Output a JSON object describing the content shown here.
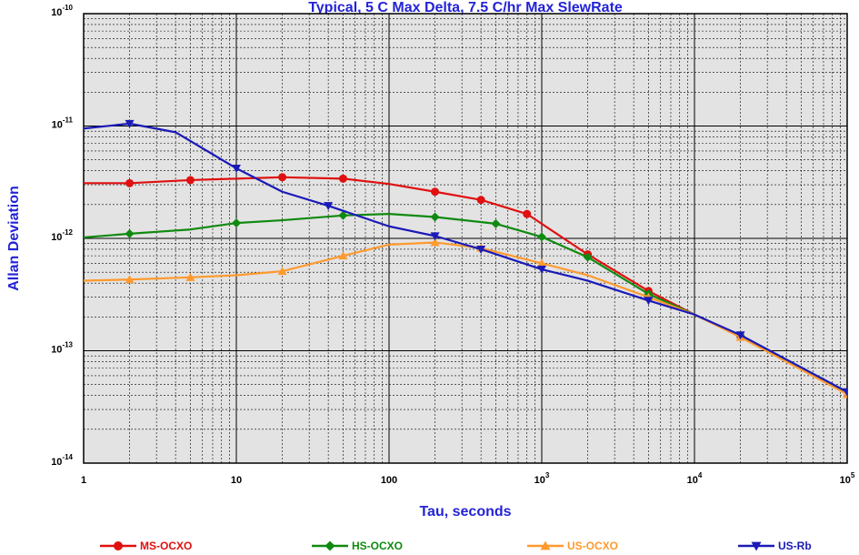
{
  "chart_data": {
    "type": "line",
    "title": "Typical, 5 C Max Delta, 7.5 C/hr Max SlewRate",
    "xlabel": "Tau, seconds",
    "ylabel": "Allan Deviation",
    "x_scale": "log",
    "y_scale": "log",
    "xlim": [
      1,
      100000
    ],
    "ylim": [
      1e-14,
      1e-10
    ],
    "grid": true,
    "legend_position": "bottom",
    "x_ticks": [
      {
        "base": "1",
        "exp": ""
      },
      {
        "base": "10",
        "exp": ""
      },
      {
        "base": "100",
        "exp": ""
      },
      {
        "base": "10",
        "exp": "3"
      },
      {
        "base": "10",
        "exp": "4"
      },
      {
        "base": "10",
        "exp": "5"
      }
    ],
    "y_ticks": [
      {
        "base": "10",
        "exp": "-14"
      },
      {
        "base": "10",
        "exp": "-13"
      },
      {
        "base": "10",
        "exp": "-12"
      },
      {
        "base": "10",
        "exp": "-11"
      },
      {
        "base": "10",
        "exp": "-10"
      }
    ],
    "series": [
      {
        "name": "MS-OCXO",
        "color": "#e01010",
        "marker": "circle",
        "x": [
          1,
          2,
          5,
          10,
          20,
          50,
          100,
          200,
          400,
          800,
          2000,
          5000,
          10000,
          20000,
          100000
        ],
        "y": [
          3.1e-12,
          3.1e-12,
          3.3e-12,
          3.4e-12,
          3.5e-12,
          3.4e-12,
          3.05e-12,
          2.6e-12,
          2.2e-12,
          1.65e-12,
          7.2e-13,
          3.4e-13,
          2.1e-13,
          1.35e-13,
          4.2e-14
        ],
        "markers_at": [
          2,
          5,
          20,
          50,
          200,
          400,
          800,
          2000,
          5000,
          20000
        ]
      },
      {
        "name": "HS-OCXO",
        "color": "#108a10",
        "marker": "diamond",
        "x": [
          1,
          2,
          5,
          10,
          20,
          50,
          100,
          200,
          500,
          1000,
          2000,
          5000,
          10000,
          20000,
          100000
        ],
        "y": [
          1.02e-12,
          1.1e-12,
          1.2e-12,
          1.37e-12,
          1.45e-12,
          1.6e-12,
          1.65e-12,
          1.55e-12,
          1.35e-12,
          1.03e-12,
          6.8e-13,
          3.2e-13,
          2.1e-13,
          1.35e-13,
          4.2e-14
        ],
        "markers_at": [
          2,
          10,
          50,
          200,
          500,
          1000,
          2000,
          5000,
          20000
        ]
      },
      {
        "name": "US-OCXO",
        "color": "#ff9a2e",
        "marker": "triangle-up",
        "x": [
          1,
          2,
          5,
          10,
          20,
          50,
          100,
          200,
          400,
          1000,
          2000,
          5000,
          10000,
          20000,
          100000
        ],
        "y": [
          4.2e-13,
          4.3e-13,
          4.5e-13,
          4.7e-13,
          5.1e-13,
          7e-13,
          8.8e-13,
          9.2e-13,
          8.2e-13,
          6e-13,
          4.7e-13,
          3e-13,
          2.1e-13,
          1.32e-13,
          4.1e-14
        ],
        "markers_at": [
          2,
          5,
          20,
          50,
          200,
          400,
          1000,
          5000,
          20000,
          100000
        ]
      },
      {
        "name": "US-Rb",
        "color": "#1a1ab8",
        "marker": "triangle-down",
        "x": [
          1,
          2,
          4,
          10,
          20,
          40,
          100,
          200,
          400,
          1000,
          2000,
          5000,
          10000,
          20000,
          100000
        ],
        "y": [
          9.5e-12,
          1.05e-11,
          8.8e-12,
          4.2e-12,
          2.6e-12,
          1.95e-12,
          1.28e-12,
          1.05e-12,
          8e-13,
          5.3e-13,
          4.2e-13,
          2.8e-13,
          2.1e-13,
          1.38e-13,
          4.3e-14
        ],
        "markers_at": [
          2,
          10,
          40,
          200,
          400,
          1000,
          5000,
          20000,
          100000
        ]
      }
    ]
  }
}
